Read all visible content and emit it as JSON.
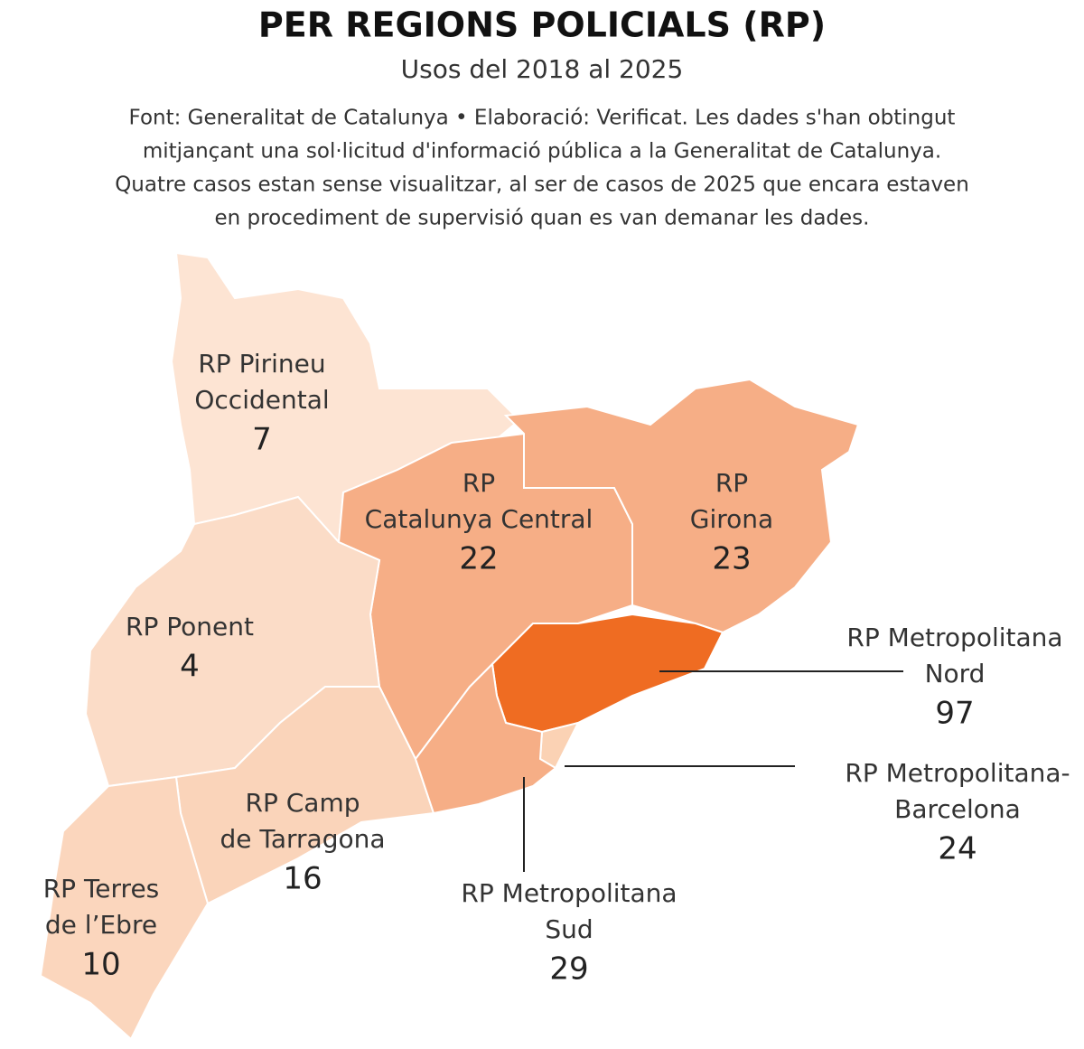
{
  "header": {
    "title": "PER REGIONS POLICIALS (RP)",
    "subtitle": "Usos del 2018 al 2025",
    "source_lines": [
      "Font: Generalitat de Catalunya • Elaboració: Verificat. Les dades s'han obtingut",
      "mitjançant una sol·licitud d'informació pública a la Generalitat de Catalunya.",
      "Quatre casos estan sense visualitzar, al ser de casos de 2025 que encara estaven",
      "en procediment de supervisió quan es van demanar les dades."
    ]
  },
  "regions": [
    {
      "name_lines": [
        "RP Pirineu",
        "Occidental"
      ],
      "value": 7,
      "color": "#fde4d3"
    },
    {
      "name_lines": [
        "RP",
        "Catalunya Central"
      ],
      "value": 22,
      "color": "#f6ae86"
    },
    {
      "name_lines": [
        "RP",
        "Girona"
      ],
      "value": 23,
      "color": "#f6ae86"
    },
    {
      "name_lines": [
        "RP Ponent"
      ],
      "value": 4,
      "color": "#fbdcc7"
    },
    {
      "name_lines": [
        "RP Metropolitana",
        "Nord"
      ],
      "value": 97,
      "color": "#ef6c22"
    },
    {
      "name_lines": [
        "RP Metropolitana-",
        "Barcelona"
      ],
      "value": 24,
      "color": "#fbd2b4"
    },
    {
      "name_lines": [
        "RP Camp",
        "de Tarragona"
      ],
      "value": 16,
      "color": "#fad4ba"
    },
    {
      "name_lines": [
        "RP Terres",
        "de l’Ebre"
      ],
      "value": 10,
      "color": "#fbd6bd"
    },
    {
      "name_lines": [
        "RP Metropolitana",
        "Sud"
      ],
      "value": 29,
      "color": "#f6ae86"
    }
  ]
}
